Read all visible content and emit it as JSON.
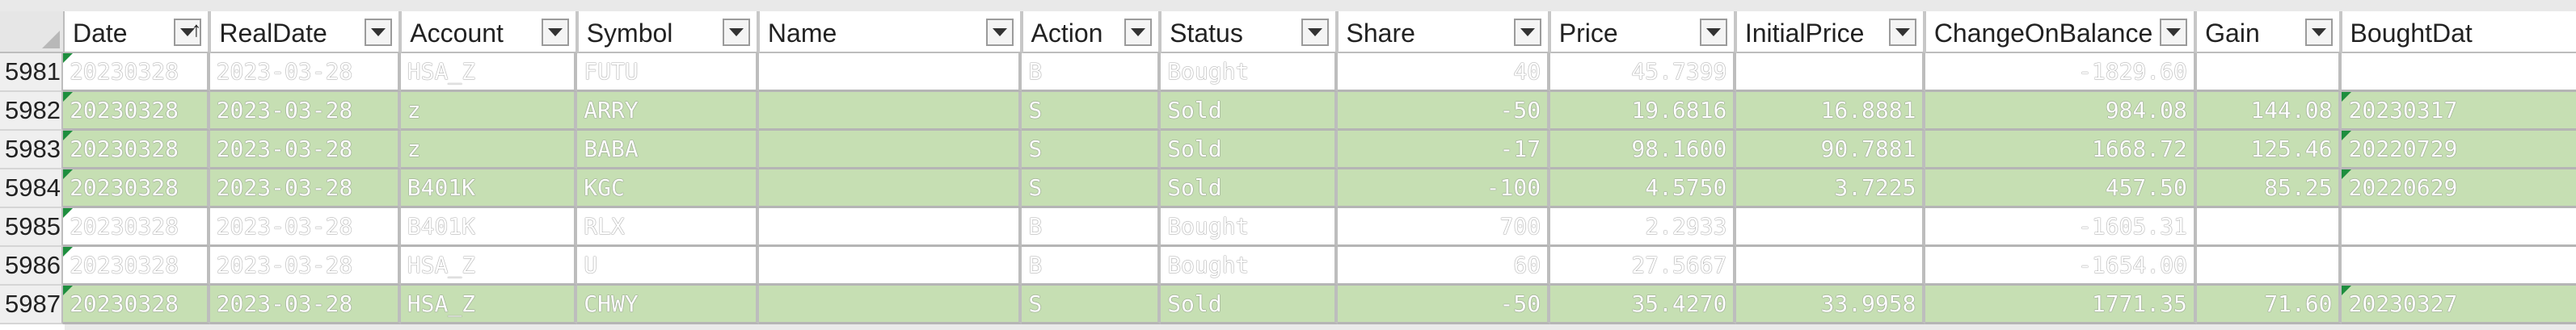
{
  "columns": [
    {
      "label": "Date",
      "sorted": "asc"
    },
    {
      "label": "RealDate"
    },
    {
      "label": "Account"
    },
    {
      "label": "Symbol"
    },
    {
      "label": "Name"
    },
    {
      "label": "Action"
    },
    {
      "label": "Status"
    },
    {
      "label": "Share"
    },
    {
      "label": "Price"
    },
    {
      "label": "InitialPrice"
    },
    {
      "label": "ChangeOnBalance"
    },
    {
      "label": "Gain"
    },
    {
      "label": "BoughtDat"
    }
  ],
  "rows": [
    {
      "num": "5981",
      "fill": "white",
      "cells": [
        "20230328",
        "2023-03-28",
        "HSA_Z",
        "FUTU",
        "",
        "B",
        "Bought",
        "40",
        "45.7399",
        "",
        "-1829.60",
        "",
        ""
      ],
      "flags": [
        0
      ]
    },
    {
      "num": "5982",
      "fill": "green",
      "cells": [
        "20230328",
        "2023-03-28",
        "z",
        "ARRY",
        "",
        "S",
        "Sold",
        "-50",
        "19.6816",
        "16.8881",
        "984.08",
        "144.08",
        "20230317"
      ],
      "flags": [
        0,
        12
      ]
    },
    {
      "num": "5983",
      "fill": "green",
      "cells": [
        "20230328",
        "2023-03-28",
        "z",
        "BABA",
        "",
        "S",
        "Sold",
        "-17",
        "98.1600",
        "90.7881",
        "1668.72",
        "125.46",
        "20220729"
      ],
      "flags": [
        0,
        12
      ]
    },
    {
      "num": "5984",
      "fill": "green",
      "cells": [
        "20230328",
        "2023-03-28",
        "B401K",
        "KGC",
        "",
        "S",
        "Sold",
        "-100",
        "4.5750",
        "3.7225",
        "457.50",
        "85.25",
        "20220629"
      ],
      "flags": [
        0,
        12
      ]
    },
    {
      "num": "5985",
      "fill": "white",
      "cells": [
        "20230328",
        "2023-03-28",
        "B401K",
        "RLX",
        "",
        "B",
        "Bought",
        "700",
        "2.2933",
        "",
        "-1605.31",
        "",
        ""
      ],
      "flags": [
        0
      ]
    },
    {
      "num": "5986",
      "fill": "white",
      "cells": [
        "20230328",
        "2023-03-28",
        "HSA_Z",
        "U",
        "",
        "B",
        "Bought",
        "60",
        "27.5667",
        "",
        "-1654.00",
        "",
        ""
      ],
      "flags": [
        0
      ]
    },
    {
      "num": "5987",
      "fill": "green",
      "cells": [
        "20230328",
        "2023-03-28",
        "HSA_Z",
        "CHWY",
        "",
        "S",
        "Sold",
        "-50",
        "35.4270",
        "33.9958",
        "1771.35",
        "71.60",
        "20230327"
      ],
      "flags": [
        0,
        12
      ]
    }
  ]
}
